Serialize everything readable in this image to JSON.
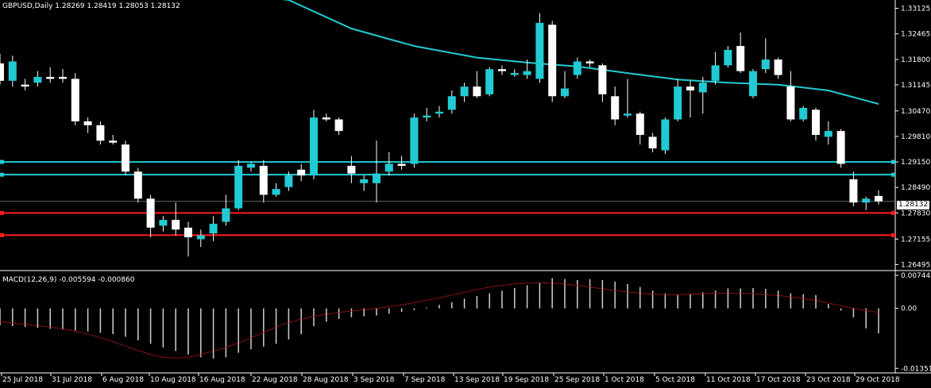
{
  "header": {
    "title": "GBPUSD,Daily  1.28269 1.28419 1.28053 1.28132",
    "macd_title": "MACD(12,26,9) -0.005594 -0.000860",
    "current_price": "1.28132"
  },
  "colors": {
    "background": "#000000",
    "bull": "#21cbd3",
    "bear": "#ffffff",
    "ma": "#21cbd3",
    "support_resistance_cyan": "#21cbd3",
    "support_resistance_red": "#ff1c1c",
    "signal": "#c71a1a",
    "grid_text": "#ffffff"
  },
  "chart_data": [
    {
      "type": "candlestick",
      "symbol": "GBPUSD",
      "timeframe": "Daily",
      "price_axis_ticks": [
        "1.33125",
        "1.32465",
        "1.31800",
        "1.31145",
        "1.30470",
        "1.29810",
        "1.29150",
        "1.28490",
        "1.27830",
        "1.27155",
        "1.26495"
      ],
      "ylim": [
        1.2638,
        1.3334
      ],
      "date_labels": [
        "25 Jul 2018",
        "31 Jul 2018",
        "6 Aug 2018",
        "10 Aug 2018",
        "16 Aug 2018",
        "22 Aug 2018",
        "28 Aug 2018",
        "3 Sep 2018",
        "7 Sep 2018",
        "13 Sep 2018",
        "19 Sep 2018",
        "25 Sep 2018",
        "1 Oct 2018",
        "5 Oct 2018",
        "11 Oct 2018",
        "17 Oct 2018",
        "23 Oct 2018",
        "29 Oct 2018"
      ],
      "ohlc": [
        [
          1.317,
          1.3195,
          1.3115,
          1.3125
        ],
        [
          1.3125,
          1.319,
          1.311,
          1.3175
        ],
        [
          1.3115,
          1.313,
          1.31,
          1.311
        ],
        [
          1.312,
          1.315,
          1.311,
          1.3135
        ],
        [
          1.3135,
          1.316,
          1.312,
          1.313
        ],
        [
          1.3135,
          1.3155,
          1.312,
          1.313
        ],
        [
          1.313,
          1.3145,
          1.301,
          1.302
        ],
        [
          1.302,
          1.303,
          1.299,
          1.301
        ],
        [
          1.301,
          1.302,
          1.296,
          1.297
        ],
        [
          1.297,
          1.2985,
          1.296,
          1.2965
        ],
        [
          1.296,
          1.297,
          1.288,
          1.289
        ],
        [
          1.289,
          1.29,
          1.281,
          1.282
        ],
        [
          1.282,
          1.283,
          1.272,
          1.2745
        ],
        [
          1.275,
          1.2775,
          1.2735,
          1.2765
        ],
        [
          1.2765,
          1.281,
          1.2725,
          1.274
        ],
        [
          1.2745,
          1.276,
          1.267,
          1.272
        ],
        [
          1.2715,
          1.274,
          1.2695,
          1.2725
        ],
        [
          1.273,
          1.2775,
          1.271,
          1.2755
        ],
        [
          1.276,
          1.283,
          1.275,
          1.2795
        ],
        [
          1.2795,
          1.292,
          1.279,
          1.2905
        ],
        [
          1.29,
          1.2915,
          1.289,
          1.291
        ],
        [
          1.2905,
          1.292,
          1.281,
          1.283
        ],
        [
          1.283,
          1.286,
          1.2825,
          1.2845
        ],
        [
          1.285,
          1.289,
          1.284,
          1.288
        ],
        [
          1.2895,
          1.291,
          1.2865,
          1.288
        ],
        [
          1.288,
          1.305,
          1.287,
          1.303
        ],
        [
          1.303,
          1.304,
          1.302,
          1.3025
        ],
        [
          1.3025,
          1.303,
          1.2985,
          1.2995
        ],
        [
          1.2905,
          1.293,
          1.286,
          1.2885
        ],
        [
          1.286,
          1.288,
          1.284,
          1.287
        ],
        [
          1.286,
          1.297,
          1.281,
          1.2885
        ],
        [
          1.289,
          1.294,
          1.288,
          1.291
        ],
        [
          1.291,
          1.293,
          1.2895,
          1.2905
        ],
        [
          1.291,
          1.304,
          1.29,
          1.303
        ],
        [
          1.303,
          1.3055,
          1.302,
          1.3035
        ],
        [
          1.304,
          1.306,
          1.303,
          1.3045
        ],
        [
          1.305,
          1.31,
          1.304,
          1.3085
        ],
        [
          1.3085,
          1.312,
          1.307,
          1.311
        ],
        [
          1.311,
          1.315,
          1.308,
          1.3085
        ],
        [
          1.309,
          1.316,
          1.3085,
          1.3155
        ],
        [
          1.3155,
          1.3165,
          1.314,
          1.315
        ],
        [
          1.314,
          1.3155,
          1.3135,
          1.3145
        ],
        [
          1.314,
          1.318,
          1.313,
          1.315
        ],
        [
          1.313,
          1.33,
          1.312,
          1.3275
        ],
        [
          1.327,
          1.328,
          1.307,
          1.3085
        ],
        [
          1.3085,
          1.315,
          1.308,
          1.3105
        ],
        [
          1.314,
          1.3185,
          1.313,
          1.3175
        ],
        [
          1.3175,
          1.318,
          1.316,
          1.317
        ],
        [
          1.3165,
          1.317,
          1.307,
          1.309
        ],
        [
          1.3085,
          1.311,
          1.301,
          1.3025
        ],
        [
          1.3035,
          1.313,
          1.303,
          1.304
        ],
        [
          1.304,
          1.3045,
          1.296,
          1.2985
        ],
        [
          1.298,
          1.299,
          1.294,
          1.295
        ],
        [
          1.2945,
          1.303,
          1.2935,
          1.3025
        ],
        [
          1.3025,
          1.313,
          1.302,
          1.311
        ],
        [
          1.311,
          1.3125,
          1.303,
          1.31
        ],
        [
          1.3095,
          1.3135,
          1.304,
          1.312
        ],
        [
          1.3125,
          1.32,
          1.3115,
          1.3165
        ],
        [
          1.3165,
          1.3215,
          1.316,
          1.3205
        ],
        [
          1.3215,
          1.325,
          1.3145,
          1.315
        ],
        [
          1.3085,
          1.3155,
          1.308,
          1.315
        ],
        [
          1.3155,
          1.3235,
          1.3145,
          1.318
        ],
        [
          1.318,
          1.3185,
          1.313,
          1.314
        ],
        [
          1.311,
          1.315,
          1.302,
          1.3025
        ],
        [
          1.3025,
          1.306,
          1.302,
          1.3055
        ],
        [
          1.305,
          1.3055,
          1.297,
          1.2985
        ],
        [
          1.298,
          1.302,
          1.296,
          1.2995
        ],
        [
          1.2995,
          1.3,
          1.29,
          1.291
        ],
        [
          1.287,
          1.289,
          1.28,
          1.281
        ],
        [
          1.281,
          1.2825,
          1.279,
          1.282
        ],
        [
          1.2827,
          1.2842,
          1.2805,
          1.2813
        ]
      ],
      "moving_average": [
        [
          0,
          1.342
        ],
        [
          23,
          1.3334
        ],
        [
          28,
          1.326
        ],
        [
          33,
          1.3215
        ],
        [
          38,
          1.3185
        ],
        [
          42,
          1.3172
        ],
        [
          46,
          1.3162
        ],
        [
          50,
          1.3145
        ],
        [
          54,
          1.3128
        ],
        [
          58,
          1.312
        ],
        [
          62,
          1.3115
        ],
        [
          66,
          1.31
        ],
        [
          70,
          1.3065
        ]
      ],
      "horizontal_levels": [
        {
          "price": 1.2915,
          "color": "cyan"
        },
        {
          "price": 1.2882,
          "color": "cyan"
        },
        {
          "price": 1.2783,
          "color": "red"
        },
        {
          "price": 1.27255,
          "color": "red"
        }
      ]
    },
    {
      "type": "bar",
      "name": "MACD(12,26,9)",
      "axis_ticks": [
        "0.007443",
        "0.00",
        "-0.01351"
      ],
      "ylim": [
        -0.014,
        0.0078
      ],
      "histogram": [
        -0.0038,
        -0.004,
        -0.0042,
        -0.0044,
        -0.0046,
        -0.0048,
        -0.005,
        -0.0052,
        -0.0055,
        -0.0058,
        -0.0064,
        -0.0072,
        -0.008,
        -0.0088,
        -0.0096,
        -0.0104,
        -0.011,
        -0.0113,
        -0.011,
        -0.01,
        -0.0092,
        -0.0086,
        -0.008,
        -0.007,
        -0.0058,
        -0.004,
        -0.003,
        -0.0024,
        -0.002,
        -0.0018,
        -0.0016,
        -0.0012,
        -0.0008,
        -0.0004,
        0.0002,
        0.0008,
        0.0014,
        0.0022,
        0.0028,
        0.0034,
        0.004,
        0.0046,
        0.0052,
        0.0058,
        0.0068,
        0.0066,
        0.0064,
        0.0066,
        0.0064,
        0.006,
        0.0055,
        0.0048,
        0.004,
        0.0034,
        0.003,
        0.0032,
        0.0036,
        0.004,
        0.0045,
        0.0045,
        0.0046,
        0.0044,
        0.004,
        0.0034,
        0.0032,
        0.003,
        0.001,
        -0.0005,
        -0.002,
        -0.0045,
        -0.0056
      ],
      "signal": [
        -0.003,
        -0.0033,
        -0.0036,
        -0.0039,
        -0.0042,
        -0.0046,
        -0.0051,
        -0.0058,
        -0.0066,
        -0.0075,
        -0.0085,
        -0.0095,
        -0.0104,
        -0.011,
        -0.0112,
        -0.011,
        -0.0104,
        -0.0096,
        -0.0088,
        -0.0078,
        -0.0066,
        -0.0054,
        -0.0042,
        -0.0032,
        -0.0024,
        -0.0018,
        -0.0013,
        -0.0009,
        -0.0006,
        -0.0003,
        0.0,
        0.0004,
        0.0008,
        0.0013,
        0.0018,
        0.0024,
        0.003,
        0.0036,
        0.0042,
        0.0048,
        0.0052,
        0.0055,
        0.0057,
        0.0058,
        0.0057,
        0.0055,
        0.0052,
        0.0048,
        0.0044,
        0.004,
        0.0037,
        0.0034,
        0.0032,
        0.0031,
        0.0031,
        0.0032,
        0.0033,
        0.0034,
        0.0034,
        0.0034,
        0.0033,
        0.0031,
        0.0029,
        0.0026,
        0.0022,
        0.0018,
        0.0012,
        0.0006,
        0.0,
        -0.0005,
        -0.0009
      ]
    }
  ]
}
